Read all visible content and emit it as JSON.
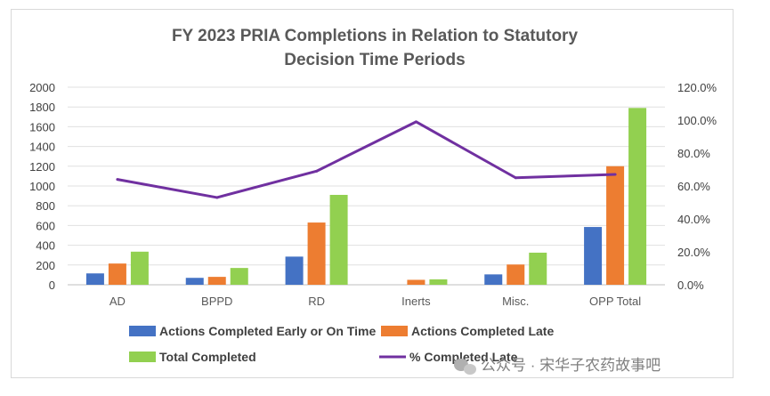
{
  "chart_data": {
    "type": "bar",
    "title_line1": "FY 2023 PRIA Completions in Relation to Statutory",
    "title_line2": "Decision Time Periods",
    "categories": [
      "AD",
      "BPPD",
      "RD",
      "Inerts",
      "Misc.",
      "OPP Total"
    ],
    "series": [
      {
        "name": "Actions Completed Early or On Time",
        "values": [
          115,
          70,
          285,
          0,
          105,
          585
        ],
        "color": "#4472c4"
      },
      {
        "name": "Actions Completed Late",
        "values": [
          215,
          80,
          630,
          50,
          205,
          1200
        ],
        "color": "#ed7d31"
      },
      {
        "name": "Total Completed",
        "values": [
          335,
          170,
          910,
          55,
          325,
          1790
        ],
        "color": "#92d050"
      }
    ],
    "line_series": {
      "name": "% Completed Late",
      "values": [
        64.0,
        53.0,
        69.0,
        99.0,
        65.0,
        67.0
      ],
      "color": "#7030a0",
      "axis": "right"
    },
    "ylim_left": [
      0,
      2000
    ],
    "yticks_left": [
      "0",
      "200",
      "400",
      "600",
      "800",
      "1000",
      "1200",
      "1400",
      "1600",
      "1800",
      "2000"
    ],
    "ylim_right": [
      0,
      120
    ],
    "yticks_right": [
      "0.0%",
      "20.0%",
      "40.0%",
      "60.0%",
      "80.0%",
      "100.0%",
      "120.0%"
    ],
    "grid": true,
    "legend_placement": "bottom"
  },
  "watermark": {
    "text": "公众号 · 宋华子农药故事吧",
    "icon": "wechat-icon"
  }
}
